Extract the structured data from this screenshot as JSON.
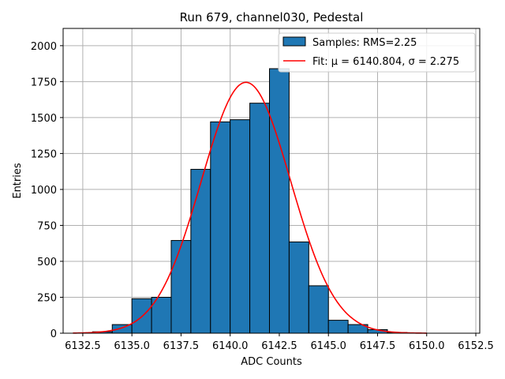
{
  "chart_data": {
    "type": "bar",
    "title": "Run 679, channel030, Pedestal",
    "xlabel": "ADC Counts",
    "ylabel": "Entries",
    "xlim": [
      6131.5,
      6152.7
    ],
    "ylim": [
      0,
      2120
    ],
    "xticks": [
      6132.5,
      6135.0,
      6137.5,
      6140.0,
      6142.5,
      6145.0,
      6147.5,
      6150.0,
      6152.5
    ],
    "xtick_labels": [
      "6132.5",
      "6135.0",
      "6137.5",
      "6140.0",
      "6142.5",
      "6145.0",
      "6147.5",
      "6150.0",
      "6152.5"
    ],
    "yticks": [
      0,
      250,
      500,
      750,
      1000,
      1250,
      1500,
      1750,
      2000
    ],
    "ytick_labels": [
      "0",
      "250",
      "500",
      "750",
      "1000",
      "1250",
      "1500",
      "1750",
      "2000"
    ],
    "grid": true,
    "bar_color": "#1f77b4",
    "fit_color": "#ff0000",
    "histogram": {
      "name": "Samples: RMS=2.25",
      "bins": [
        {
          "x0": 6133.0,
          "x1": 6134.0,
          "count": 10
        },
        {
          "x0": 6134.0,
          "x1": 6135.0,
          "count": 60
        },
        {
          "x0": 6135.0,
          "x1": 6136.0,
          "count": 240
        },
        {
          "x0": 6136.0,
          "x1": 6137.0,
          "count": 250
        },
        {
          "x0": 6137.0,
          "x1": 6138.0,
          "count": 645
        },
        {
          "x0": 6138.0,
          "x1": 6139.0,
          "count": 1140
        },
        {
          "x0": 6139.0,
          "x1": 6140.0,
          "count": 1470
        },
        {
          "x0": 6140.0,
          "x1": 6141.0,
          "count": 1485
        },
        {
          "x0": 6141.0,
          "x1": 6142.0,
          "count": 1600
        },
        {
          "x0": 6142.0,
          "x1": 6143.0,
          "count": 1840
        },
        {
          "x0": 6143.0,
          "x1": 6144.0,
          "count": 635
        },
        {
          "x0": 6144.0,
          "x1": 6145.0,
          "count": 330
        },
        {
          "x0": 6145.0,
          "x1": 6146.0,
          "count": 90
        },
        {
          "x0": 6146.0,
          "x1": 6147.0,
          "count": 60
        },
        {
          "x0": 6147.0,
          "x1": 6148.0,
          "count": 25
        },
        {
          "x0": 6148.0,
          "x1": 6149.0,
          "count": 5
        }
      ]
    },
    "fit": {
      "name": "Fit: μ = 6140.804, σ = 2.275",
      "mu": 6140.804,
      "sigma": 2.275,
      "amplitude": 1745,
      "x_range": [
        6132.0,
        6150.0
      ]
    },
    "legend": {
      "placement": "top-right",
      "entries": [
        "Samples: RMS=2.25",
        "Fit: μ = 6140.804, σ = 2.275"
      ]
    }
  }
}
